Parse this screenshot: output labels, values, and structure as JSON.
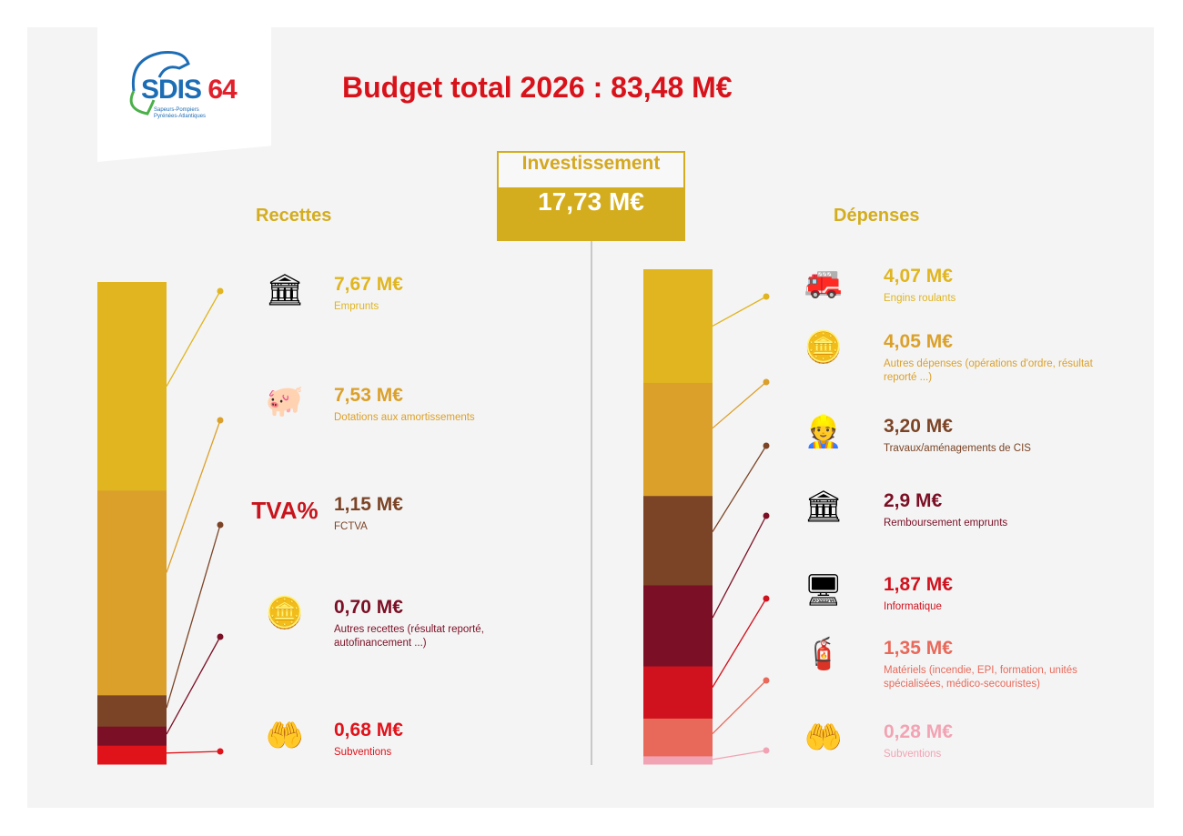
{
  "logo": {
    "name": "SDIS",
    "number": "64",
    "subtitle_1": "Sapeurs-Pompiers",
    "subtitle_2": "Pyrénées-Atlantiques"
  },
  "title": "Budget total 2026 : 83,48 M€",
  "investissement": {
    "label": "Investissement",
    "total": "17,73 M€"
  },
  "recettes": {
    "heading": "Recettes",
    "items": [
      {
        "amount": "7,67 M€",
        "value": 7.67,
        "label": "Emprunts",
        "color": "#e0b520",
        "icon": "bank-icon",
        "glyph": "🏛"
      },
      {
        "amount": "7,53 M€",
        "value": 7.53,
        "label": "Dotations aux amortissements",
        "color": "#dba02a",
        "icon": "piggy-bank-icon",
        "glyph": "🐖"
      },
      {
        "amount": "1,15 M€",
        "value": 1.15,
        "label": "FCTVA",
        "color": "#7b4426",
        "icon": "tva-percent-icon",
        "glyph": "TVA%"
      },
      {
        "amount": "0,70 M€",
        "value": 0.7,
        "label": "Autres recettes (résultat reporté, autofinancement ...)",
        "color": "#7b0f25",
        "icon": "coins-cycle-icon",
        "glyph": "🪙"
      },
      {
        "amount": "0,68 M€",
        "value": 0.68,
        "label": "Subventions",
        "color": "#e0131b",
        "icon": "hand-coins-icon",
        "glyph": "🤲"
      }
    ]
  },
  "depenses": {
    "heading": "Dépenses",
    "items": [
      {
        "amount": "4,07 M€",
        "value": 4.07,
        "label": "Engins roulants",
        "color": "#e0b520",
        "icon": "fire-truck-icon",
        "glyph": "🚒"
      },
      {
        "amount": "4,05 M€",
        "value": 4.05,
        "label": "Autres dépenses (opérations d'ordre, résultat reporté ...)",
        "color": "#dba02a",
        "icon": "coins-cycle-icon",
        "glyph": "🪙"
      },
      {
        "amount": "3,20 M€",
        "value": 3.2,
        "label": "Travaux/aménagements de CIS",
        "color": "#7b4426",
        "icon": "construction-worker-icon",
        "glyph": "👷"
      },
      {
        "amount": "2,9 M€",
        "value": 2.9,
        "label": "Remboursement emprunts",
        "color": "#7b0f25",
        "icon": "bank-icon",
        "glyph": "🏛"
      },
      {
        "amount": "1,87 M€",
        "value": 1.87,
        "label": "Informatique",
        "color": "#d0121e",
        "icon": "computer-monitor-icon",
        "glyph": "🖥"
      },
      {
        "amount": "1,35 M€",
        "value": 1.35,
        "label": "Matériels (incendie, EPI, formation, unités spécialisées, médico-secouristes)",
        "color": "#e8695a",
        "icon": "fire-hose-icon",
        "glyph": "🧯"
      },
      {
        "amount": "0,28 M€",
        "value": 0.28,
        "label": "Subventions",
        "color": "#f2a3b3",
        "icon": "hand-coins-icon",
        "glyph": "🤲"
      }
    ]
  }
}
